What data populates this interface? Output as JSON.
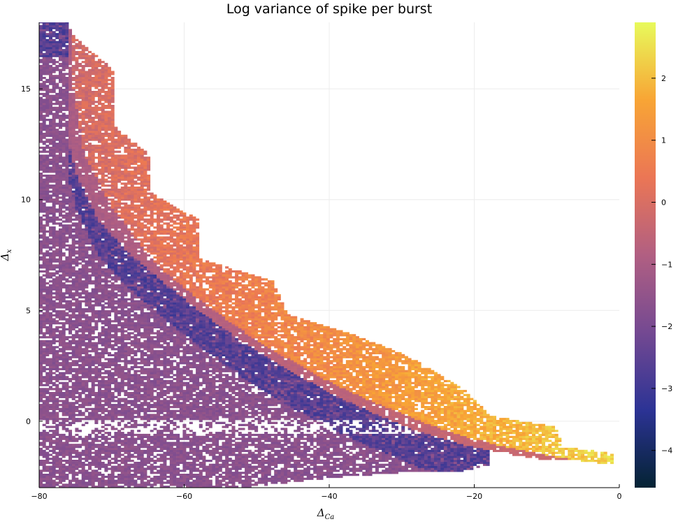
{
  "chart_data": {
    "type": "heatmap",
    "title": "Log variance of spike per burst",
    "xlabel": "Δ",
    "xlabel_sub": "Ca",
    "ylabel": "Δ",
    "ylabel_sub": "x",
    "xlim": [
      -80,
      0
    ],
    "ylim": [
      -3,
      18
    ],
    "xticks": [
      -80,
      -60,
      -40,
      -20,
      0
    ],
    "yticks": [
      0,
      5,
      10,
      15
    ],
    "xtick_labels": [
      "−80",
      "−60",
      "−40",
      "−20",
      "0"
    ],
    "ytick_labels": [
      "0",
      "5",
      "10",
      "15"
    ],
    "grid": true,
    "colorbar": {
      "colormap": "thermal",
      "range": [
        -4.6,
        2.9
      ],
      "ticks": [
        -4,
        -3,
        -2,
        -1,
        0,
        1,
        2
      ],
      "tick_labels": [
        "−4",
        "−3",
        "−2",
        "−1",
        "0",
        "1",
        "2"
      ],
      "colors": [
        "#042333",
        "#2c3395",
        "#744992",
        "#b15f82",
        "#eb7655",
        "#f8a535",
        "#e8fa5b"
      ]
    },
    "regions": [
      {
        "name": "left-lower",
        "approx_value": -1.8,
        "lower_boundary_bottom": [
          [
            -80,
            -3
          ],
          [
            -51,
            -3
          ],
          [
            -40,
            -2.6
          ],
          [
            -28,
            -2.3
          ],
          [
            -22,
            -2.3
          ],
          [
            -18,
            -2.0
          ]
        ],
        "upper_boundary_dark": [
          [
            -80,
            18
          ],
          [
            -78,
            14
          ],
          [
            -77,
            11
          ],
          [
            -76,
            10
          ],
          [
            -72,
            8.5
          ],
          [
            -66,
            6.5
          ],
          [
            -60,
            5
          ],
          [
            -55,
            3.8
          ],
          [
            -50,
            2.6
          ],
          [
            -45,
            1.6
          ],
          [
            -40,
            0.9
          ],
          [
            -35,
            0.3
          ],
          [
            -30,
            -0.2
          ],
          [
            -25,
            -0.6
          ],
          [
            -22,
            -0.9
          ]
        ]
      },
      {
        "name": "mid-band",
        "approx_value": -1.3,
        "left_edge": [
          [
            -76,
            18
          ],
          [
            -77,
            16
          ],
          [
            -76.5,
            13
          ],
          [
            -75,
            11
          ],
          [
            -72,
            9
          ],
          [
            -68,
            7.6
          ],
          [
            -63,
            6.2
          ],
          [
            -58,
            4.9
          ],
          [
            -52,
            3.5
          ],
          [
            -46,
            2.3
          ],
          [
            -40,
            1.2
          ],
          [
            -34,
            0.3
          ],
          [
            -28,
            -0.5
          ],
          [
            -22,
            -1.1
          ],
          [
            -16,
            -1.5
          ],
          [
            -10,
            -1.8
          ]
        ],
        "right_edge": [
          [
            -76,
            18
          ],
          [
            -75.5,
            15
          ],
          [
            -74,
            12
          ],
          [
            -70,
            9.5
          ],
          [
            -64,
            7
          ],
          [
            -58,
            5.4
          ],
          [
            -52,
            4
          ],
          [
            -46,
            2.8
          ],
          [
            -40,
            1.7
          ],
          [
            -34,
            0.8
          ],
          [
            -28,
            0
          ],
          [
            -22,
            -0.7
          ],
          [
            -16,
            -1.2
          ],
          [
            -10,
            -1.6
          ],
          [
            -4,
            -1.9
          ],
          [
            0,
            -2
          ]
        ]
      },
      {
        "name": "upper-staircase",
        "approx_value": 1.2,
        "outer_boundary": [
          [
            -76,
            18
          ],
          [
            -76,
            17.5
          ],
          [
            -70,
            15.8
          ],
          [
            -70,
            13.3
          ],
          [
            -65,
            12
          ],
          [
            -65,
            10.3
          ],
          [
            -58,
            9
          ],
          [
            -58,
            7.3
          ],
          [
            -48,
            6.3
          ],
          [
            -46,
            4.8
          ],
          [
            -38,
            4
          ],
          [
            -30,
            3
          ],
          [
            -22,
            1.5
          ],
          [
            -18,
            0.2
          ],
          [
            -9,
            -0.3
          ],
          [
            -8,
            -1.2
          ],
          [
            -1,
            -1.5
          ]
        ]
      }
    ]
  }
}
